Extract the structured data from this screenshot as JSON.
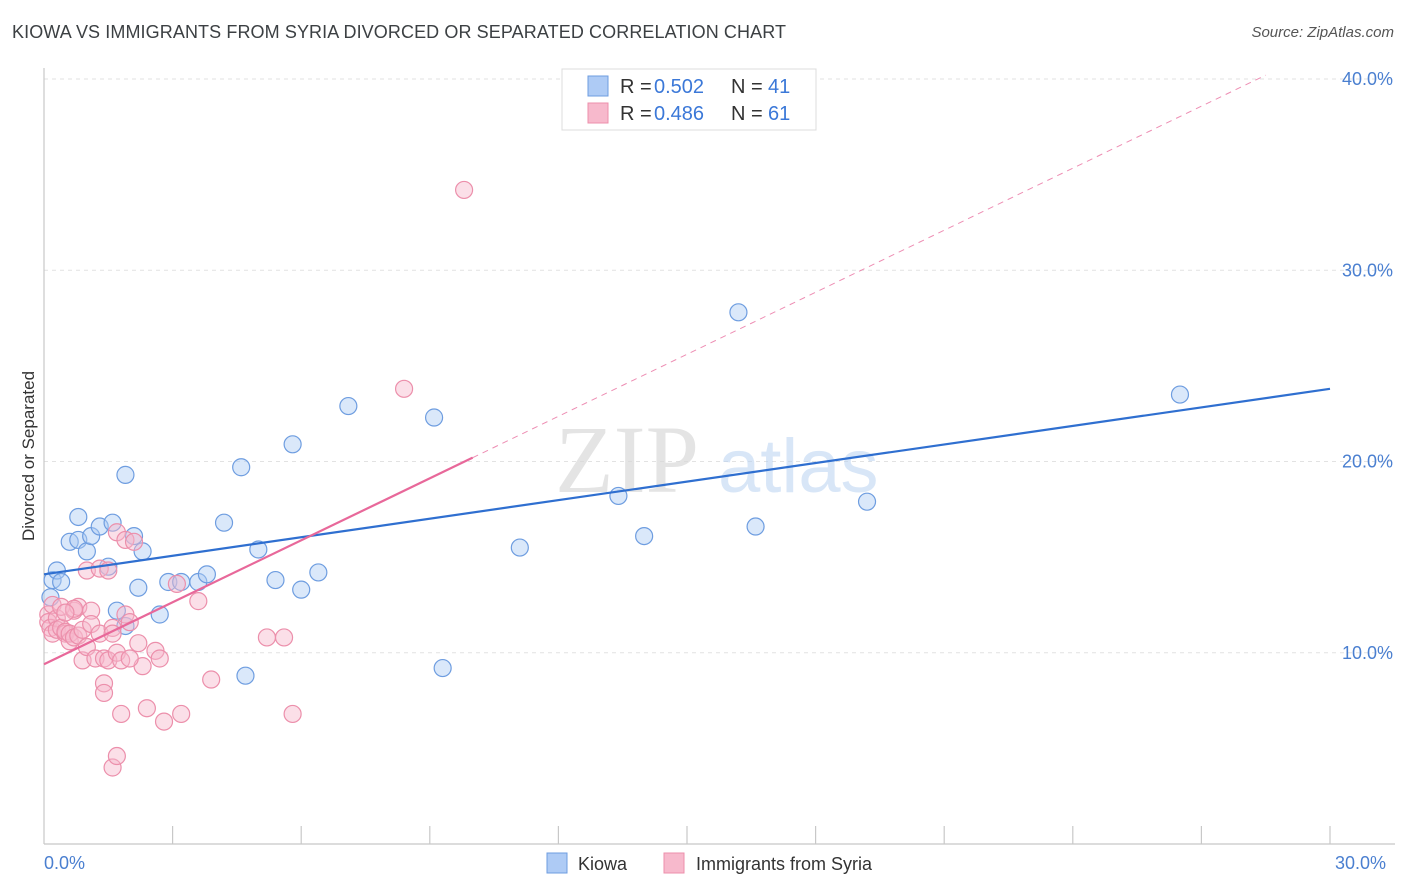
{
  "header": {
    "title": "KIOWA VS IMMIGRANTS FROM SYRIA DIVORCED OR SEPARATED CORRELATION CHART",
    "source": "Source: ZipAtlas.com"
  },
  "watermark": {
    "zip": "ZIP",
    "atlas": "atlas"
  },
  "legend": {
    "r_label": "R =",
    "n_label": "N =",
    "entries": [
      {
        "r": "0.502",
        "n": "41"
      },
      {
        "r": "0.486",
        "n": "61"
      }
    ]
  },
  "colors": {
    "kiowa_fill": "#aecbf5",
    "kiowa_stroke": "#6e9de0",
    "kiowa_line": "#2f6fd0",
    "syria_fill": "#f7b9cc",
    "syria_stroke": "#ec8fab",
    "syria_line": "#e8689a"
  },
  "chart_data": {
    "type": "scatter",
    "title": "KIOWA VS IMMIGRANTS FROM SYRIA DIVORCED OR SEPARATED CORRELATION CHART",
    "xlabel": "",
    "ylabel": "Divorced or Separated",
    "xlim": [
      0,
      30
    ],
    "ylim": [
      0,
      40
    ],
    "x_tick_labels": [
      "0.0%",
      "30.0%"
    ],
    "y_ticks": [
      10,
      20,
      30,
      40
    ],
    "y_tick_labels": [
      "10.0%",
      "20.0%",
      "30.0%",
      "40.0%"
    ],
    "grid": true,
    "legend_position": "top-center",
    "series": [
      {
        "name": "Kiowa",
        "r": 0.502,
        "n": 41,
        "trend": {
          "x": [
            0,
            30
          ],
          "y": [
            14.1,
            23.8
          ]
        },
        "points": [
          [
            0.2,
            13.8
          ],
          [
            0.3,
            14.3
          ],
          [
            0.4,
            13.7
          ],
          [
            0.6,
            15.8
          ],
          [
            0.8,
            17.1
          ],
          [
            0.8,
            15.9
          ],
          [
            1.0,
            15.3
          ],
          [
            1.1,
            16.1
          ],
          [
            1.3,
            16.6
          ],
          [
            1.5,
            14.5
          ],
          [
            1.6,
            16.8
          ],
          [
            1.7,
            12.2
          ],
          [
            1.9,
            19.3
          ],
          [
            1.9,
            11.4
          ],
          [
            2.1,
            16.1
          ],
          [
            2.2,
            13.4
          ],
          [
            2.3,
            15.3
          ],
          [
            2.7,
            12.0
          ],
          [
            2.9,
            13.7
          ],
          [
            3.2,
            13.7
          ],
          [
            3.6,
            13.7
          ],
          [
            3.8,
            14.1
          ],
          [
            4.2,
            16.8
          ],
          [
            4.6,
            19.7
          ],
          [
            4.7,
            8.8
          ],
          [
            5.0,
            15.4
          ],
          [
            5.4,
            13.8
          ],
          [
            5.8,
            20.9
          ],
          [
            6.0,
            13.3
          ],
          [
            6.4,
            14.2
          ],
          [
            7.1,
            22.9
          ],
          [
            9.1,
            22.3
          ],
          [
            9.3,
            9.2
          ],
          [
            11.1,
            15.5
          ],
          [
            13.4,
            18.2
          ],
          [
            14.0,
            16.1
          ],
          [
            16.2,
            27.8
          ],
          [
            16.6,
            16.6
          ],
          [
            19.2,
            17.9
          ],
          [
            26.5,
            23.5
          ],
          [
            0.15,
            12.9
          ]
        ]
      },
      {
        "name": "Immigrants from Syria",
        "r": 0.486,
        "n": 61,
        "trend": {
          "x": [
            0,
            10
          ],
          "y": [
            9.4,
            20.2
          ]
        },
        "trend_extended": {
          "x": [
            10,
            28.5
          ],
          "y": [
            20.2,
            40.2
          ]
        },
        "points": [
          [
            0.1,
            12.0
          ],
          [
            0.1,
            11.6
          ],
          [
            0.15,
            11.3
          ],
          [
            0.2,
            12.5
          ],
          [
            0.2,
            11.0
          ],
          [
            0.3,
            11.8
          ],
          [
            0.3,
            11.2
          ],
          [
            0.4,
            11.3
          ],
          [
            0.4,
            12.4
          ],
          [
            0.5,
            11.0
          ],
          [
            0.5,
            11.1
          ],
          [
            0.6,
            10.6
          ],
          [
            0.6,
            11.0
          ],
          [
            0.7,
            12.2
          ],
          [
            0.7,
            10.8
          ],
          [
            0.8,
            10.9
          ],
          [
            0.8,
            12.4
          ],
          [
            0.9,
            11.2
          ],
          [
            0.9,
            9.6
          ],
          [
            1.0,
            10.3
          ],
          [
            1.0,
            14.3
          ],
          [
            1.1,
            12.2
          ],
          [
            1.1,
            11.5
          ],
          [
            1.2,
            9.7
          ],
          [
            1.3,
            11.0
          ],
          [
            1.3,
            14.4
          ],
          [
            1.4,
            9.7
          ],
          [
            1.4,
            8.4
          ],
          [
            1.4,
            7.9
          ],
          [
            1.5,
            9.6
          ],
          [
            1.6,
            11.3
          ],
          [
            1.6,
            11.0
          ],
          [
            1.7,
            10.0
          ],
          [
            1.7,
            16.3
          ],
          [
            1.8,
            9.6
          ],
          [
            1.8,
            6.8
          ],
          [
            1.9,
            15.9
          ],
          [
            1.9,
            12.0
          ],
          [
            2.0,
            11.6
          ],
          [
            2.1,
            15.8
          ],
          [
            2.2,
            10.5
          ],
          [
            2.3,
            9.3
          ],
          [
            2.4,
            7.1
          ],
          [
            2.6,
            10.1
          ],
          [
            2.7,
            9.7
          ],
          [
            2.8,
            6.4
          ],
          [
            3.1,
            13.6
          ],
          [
            3.2,
            6.8
          ],
          [
            3.6,
            12.7
          ],
          [
            3.9,
            8.6
          ],
          [
            5.2,
            10.8
          ],
          [
            5.6,
            10.8
          ],
          [
            5.8,
            6.8
          ],
          [
            8.4,
            23.8
          ],
          [
            9.8,
            34.2
          ],
          [
            1.6,
            4.0
          ],
          [
            1.7,
            4.6
          ],
          [
            0.7,
            12.3
          ],
          [
            1.5,
            14.3
          ],
          [
            2.0,
            9.7
          ],
          [
            0.5,
            12.1
          ]
        ]
      }
    ]
  }
}
